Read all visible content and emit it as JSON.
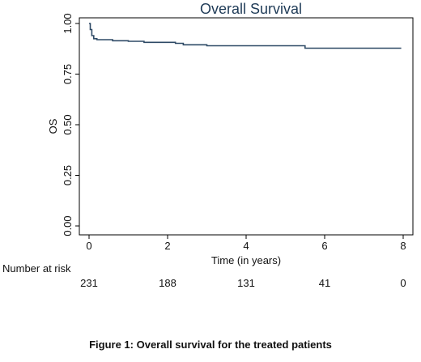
{
  "chart_data": {
    "type": "line",
    "title": "Overall Survival",
    "xlabel": "Time (in years)",
    "ylabel": "OS",
    "xlim": [
      0,
      8
    ],
    "ylim": [
      0,
      1
    ],
    "x_ticks": [
      "0",
      "2",
      "4",
      "6",
      "8"
    ],
    "y_ticks": [
      "0.00",
      "0.25",
      "0.50",
      "0.75",
      "1.00"
    ],
    "grid": false,
    "series": [
      {
        "line_color": "#2e4a66",
        "step": true,
        "points": [
          [
            0,
            1.0
          ],
          [
            0.03,
            0.97
          ],
          [
            0.07,
            0.94
          ],
          [
            0.12,
            0.925
          ],
          [
            0.2,
            0.92
          ],
          [
            0.6,
            0.915
          ],
          [
            1.0,
            0.912
          ],
          [
            1.4,
            0.907
          ],
          [
            2.2,
            0.902
          ],
          [
            2.4,
            0.895
          ],
          [
            3.0,
            0.89
          ],
          [
            5.5,
            0.878
          ],
          [
            7.95,
            0.878
          ]
        ]
      }
    ],
    "risk_table": {
      "label": "Number at risk",
      "times": [
        0,
        2,
        4,
        6,
        8
      ],
      "values": [
        "231",
        "188",
        "131",
        "41",
        "0"
      ]
    }
  },
  "caption": "Figure 1: Overall survival for the treated patients"
}
